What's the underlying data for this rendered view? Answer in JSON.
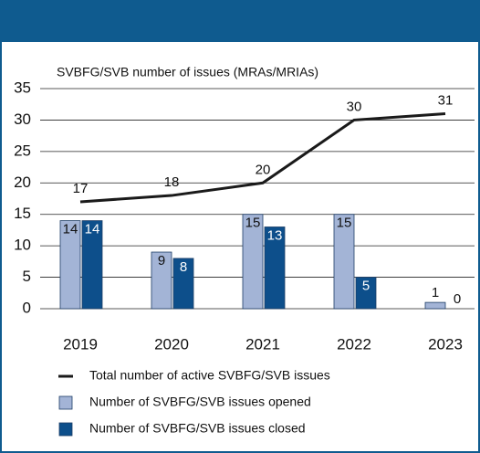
{
  "chart_data": {
    "type": "bar",
    "y_label": "SVBFG/SVB number of issues (MRAs/MRIAs)",
    "categories": [
      "2019",
      "2020",
      "2021",
      "2022",
      "2023"
    ],
    "series": [
      {
        "name": "Total number of active SVBFG/SVB issues",
        "type": "line",
        "color": "#1a1a1a",
        "values": [
          17,
          18,
          20,
          30,
          31
        ]
      },
      {
        "name": "Number of SVBFG/SVB issues opened",
        "type": "bar",
        "color": "#a3b4d6",
        "values": [
          14,
          9,
          15,
          15,
          1
        ]
      },
      {
        "name": "Number of SVBFG/SVB issues closed",
        "type": "bar",
        "color": "#0d4f8b",
        "values": [
          14,
          8,
          13,
          5,
          0
        ]
      }
    ],
    "ylim": [
      0,
      35
    ],
    "yticks": [
      0,
      5,
      10,
      15,
      20,
      25,
      30,
      35
    ],
    "grid": true
  }
}
